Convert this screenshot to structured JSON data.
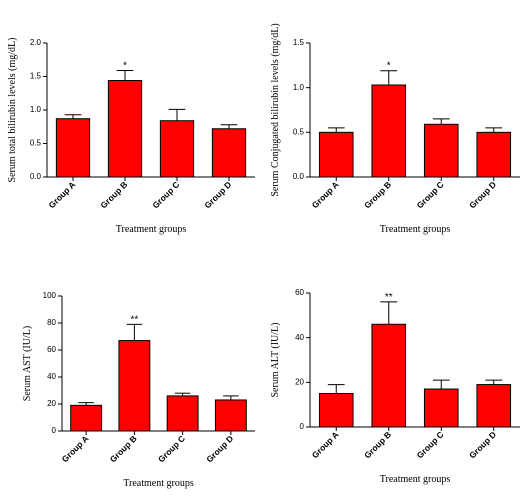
{
  "chart_data": [
    {
      "type": "bar",
      "color": "#ff0000",
      "ylabel": "Serum total bilirubin levels (mg/dL)",
      "xlabel": "Treatment groups",
      "categories": [
        "Group A",
        "Group B",
        "Group C",
        "Group D"
      ],
      "values": [
        0.87,
        1.44,
        0.84,
        0.72
      ],
      "errors": [
        0.06,
        0.15,
        0.17,
        0.06
      ],
      "annotations": [
        null,
        "*",
        null,
        null
      ],
      "ylim": [
        0,
        2
      ],
      "yticks": [
        {
          "value": 0,
          "label": "0.0"
        },
        0.5,
        {
          "value": 1,
          "label": "1.0"
        },
        1.5,
        {
          "value": 2,
          "label": "2.0"
        }
      ]
    },
    {
      "type": "bar",
      "color": "#ff0000",
      "ylabel": "Serum Conjugated bilirubin levels (mg/dL)",
      "xlabel": "Treatment groups",
      "categories": [
        "Group A",
        "Group B",
        "Group C",
        "Group D"
      ],
      "values": [
        0.5,
        1.03,
        0.59,
        0.5
      ],
      "errors": [
        0.05,
        0.16,
        0.06,
        0.05
      ],
      "annotations": [
        null,
        "*",
        null,
        null
      ],
      "ylim": [
        0,
        1.5
      ],
      "yticks": [
        {
          "value": 0,
          "label": "0.0"
        },
        0.5,
        {
          "value": 1,
          "label": "1.0"
        },
        1.5
      ]
    },
    {
      "type": "bar",
      "color": "#ff0000",
      "ylabel": "Serum AST (IU/L)",
      "xlabel": "Treatment groups",
      "categories": [
        "Group A",
        "Group B",
        "Group C",
        "Group D"
      ],
      "values": [
        19,
        67,
        26,
        23
      ],
      "errors": [
        2,
        12,
        2,
        3
      ],
      "annotations": [
        null,
        "**",
        null,
        null
      ],
      "ylim": [
        0,
        100
      ],
      "yticks": [
        0,
        20,
        40,
        60,
        80,
        100
      ]
    },
    {
      "type": "bar",
      "color": "#ff0000",
      "ylabel": "Serum ALT (IU/L)",
      "xlabel": "Treatment groups",
      "categories": [
        "Group A",
        "Group B",
        "Group C",
        "Group D"
      ],
      "values": [
        15,
        46,
        17,
        19
      ],
      "errors": [
        4,
        10,
        4,
        2
      ],
      "annotations": [
        null,
        "**",
        null,
        null
      ],
      "ylim": [
        0,
        60
      ],
      "yticks": [
        0,
        20,
        40,
        60
      ]
    }
  ]
}
